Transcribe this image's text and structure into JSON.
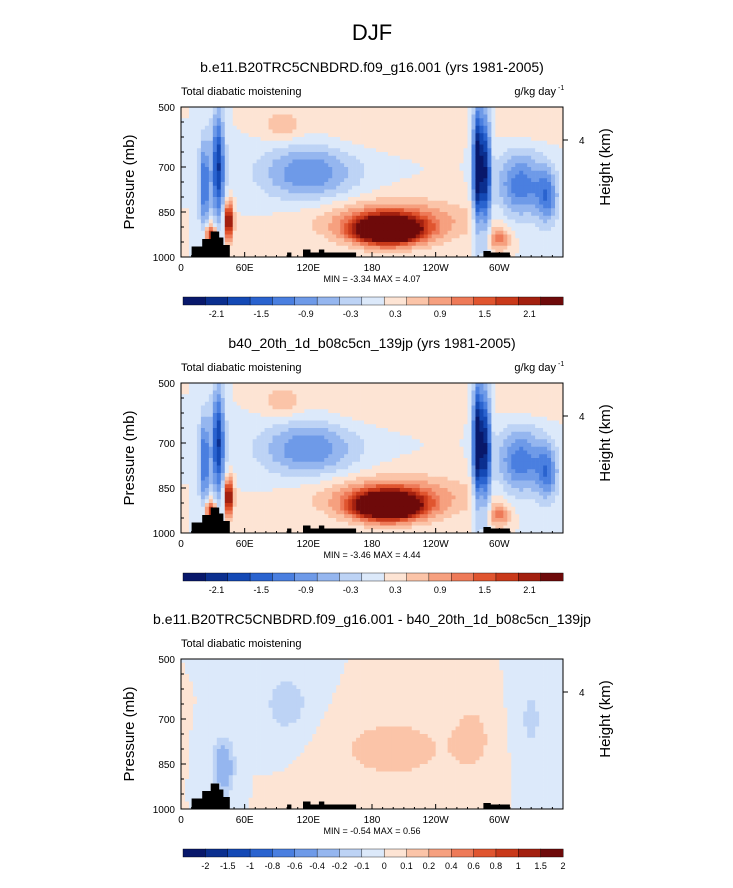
{
  "page_title": "DJF",
  "colors": {
    "default_scale": [
      "#08186b",
      "#0b2f8f",
      "#1449b5",
      "#2a63cf",
      "#4a7fe0",
      "#6e9ae8",
      "#95b6ef",
      "#bdd3f5",
      "#dce9fa",
      "#fde4d4",
      "#fbc4a8",
      "#f6a07f",
      "#ee7a58",
      "#e0552f",
      "#c9391a",
      "#a3200f",
      "#6e0a0a"
    ],
    "diff_scale": [
      "#08186b",
      "#0b2f8f",
      "#1449b5",
      "#2a63cf",
      "#4a7fe0",
      "#6e9ae8",
      "#95b6ef",
      "#bdd3f5",
      "#dce9fa",
      "#fde4d4",
      "#fbc4a8",
      "#f6a07f",
      "#ee7a58",
      "#e0552f",
      "#c9391a",
      "#a3200f",
      "#6e0a0a"
    ],
    "land": "#000000"
  },
  "chart_data": [
    {
      "type": "heatmap",
      "title": "b.e11.B20TRC5CNBDRD.f09_g16.001 (yrs 1981-2005)",
      "left_label": "Total diabatic moistening",
      "units": "g/kg day",
      "units_exp": "-1",
      "ylabel": "Pressure (mb)",
      "ylabel_right": "Height (km)",
      "x_ticks": [
        "0",
        "60E",
        "120E",
        "180",
        "120W",
        "60W"
      ],
      "y_ticks": [
        "500",
        "700",
        "850",
        "1000"
      ],
      "right_ticks": [
        "4"
      ],
      "min_max_text": "MIN = -3.34   MAX =  4.07",
      "min": -3.34,
      "max": 4.07,
      "colorbar_labels": [
        "-2.1",
        "-1.5",
        "-0.9",
        "-0.3",
        "0.3",
        "0.9",
        "1.5",
        "2.1"
      ]
    },
    {
      "type": "heatmap",
      "title": "b40_20th_1d_b08c5cn_139jp (yrs 1981-2005)",
      "left_label": "Total diabatic moistening",
      "units": "g/kg day",
      "units_exp": "-1",
      "ylabel": "Pressure (mb)",
      "ylabel_right": "Height (km)",
      "x_ticks": [
        "0",
        "60E",
        "120E",
        "180",
        "120W",
        "60W"
      ],
      "y_ticks": [
        "500",
        "700",
        "850",
        "1000"
      ],
      "right_ticks": [
        "4"
      ],
      "min_max_text": "MIN = -3.46   MAX =  4.44",
      "min": -3.46,
      "max": 4.44,
      "colorbar_labels": [
        "-2.1",
        "-1.5",
        "-0.9",
        "-0.3",
        "0.3",
        "0.9",
        "1.5",
        "2.1"
      ]
    },
    {
      "type": "heatmap",
      "title": "b.e11.B20TRC5CNBDRD.f09_g16.001 - b40_20th_1d_b08c5cn_139jp",
      "left_label": "Total diabatic moistening",
      "units": "",
      "units_exp": "",
      "ylabel": "Pressure (mb)",
      "ylabel_right": "Height (km)",
      "x_ticks": [
        "0",
        "60E",
        "120E",
        "180",
        "120W",
        "60W"
      ],
      "y_ticks": [
        "500",
        "700",
        "850",
        "1000"
      ],
      "right_ticks": [
        "4"
      ],
      "min_max_text": "MIN = -0.54   MAX =  0.56",
      "min": -0.54,
      "max": 0.56,
      "colorbar_labels": [
        "-2",
        "-1.5",
        "-1",
        "-0.8",
        "-0.6",
        "-0.4",
        "-0.2",
        "-0.1",
        "0",
        "0.1",
        "0.2",
        "0.4",
        "0.6",
        "0.8",
        "1",
        "1.5",
        "2"
      ]
    }
  ]
}
